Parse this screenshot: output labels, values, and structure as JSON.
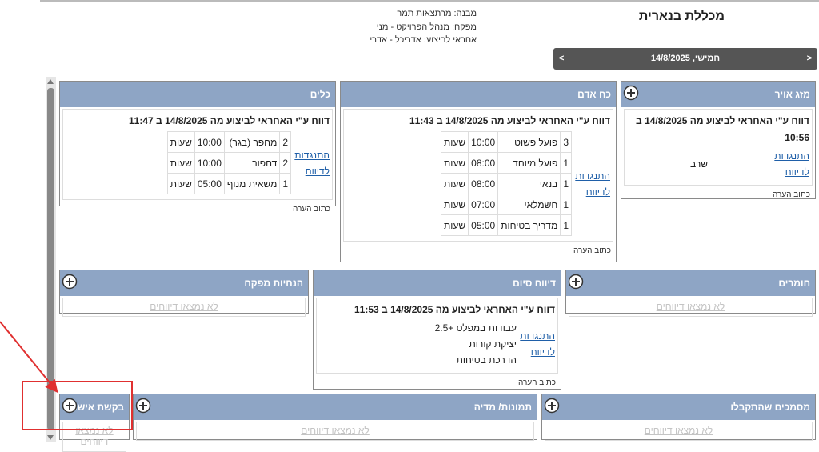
{
  "header": {
    "title": "מכללת בנארית",
    "info": [
      "מבנה: מרתצאות תמר",
      "מפקח: מנהל הפרויקט - מני",
      "אחראי לביצוע: אדריכל - אדרי"
    ]
  },
  "date_bar": {
    "prev": "<",
    "date": "חמישי, 14/8/2025",
    "next": ">"
  },
  "panels": [
    {
      "title": "מזג אויר",
      "can_add": true,
      "report": "דווח ע\"י האחראי לביצוע מה 14/8/2025 ב 10:56",
      "dispute": "התנגדות לדיווח",
      "items": [
        "שרב"
      ],
      "comment": "כתוב הערה"
    },
    {
      "title": "כח אדם",
      "can_add": false,
      "report": "דווח ע\"י האחראי לביצוע מה 14/8/2025 ב 11:43",
      "dispute": "התנגדות לדיווח",
      "rows": [
        [
          3,
          "פועל פשוט",
          "10:00",
          "שעות"
        ],
        [
          1,
          "פועל מיוחד",
          "08:00",
          "שעות"
        ],
        [
          1,
          "בנאי",
          "08:00",
          "שעות"
        ],
        [
          1,
          "חשמלאי",
          "07:00",
          "שעות"
        ],
        [
          1,
          "מדריך בטיחות",
          "05:00",
          "שעות"
        ]
      ],
      "comment": "כתוב הערה"
    },
    {
      "title": "כלים",
      "can_add": false,
      "report": "דווח ע\"י האחראי לביצוע מה 14/8/2025 ב 11:47",
      "dispute": "התנגדות לדיווח",
      "rows": [
        [
          2,
          "מחפר (בגר)",
          "10:00",
          "שעות"
        ],
        [
          2,
          "דחפור",
          "10:00",
          "שעות"
        ],
        [
          1,
          "משאית מנוף",
          "05:00",
          "שעות"
        ]
      ],
      "comment": "כתוב הערה"
    },
    {
      "title": "חומרים",
      "can_add": true,
      "empty": "לא נמצאו דיווחים"
    },
    {
      "title": "דיווח סיום",
      "can_add": false,
      "report": "דווח ע\"י האחראי לביצוע מה 14/8/2025 ב 11:53",
      "dispute": "התנגדות לדיווח",
      "items": [
        "עבודות במפלס +2.5",
        "יציקת קורות",
        "הדרכת בטיחות"
      ],
      "comment": "כתוב הערה"
    },
    {
      "title": "הנחיות מפקח",
      "can_add": true,
      "empty": "לא נמצאו דיווחים"
    },
    {
      "title": "מסמכים שהתקבלו",
      "can_add": true,
      "empty": "לא נמצאו דיווחים"
    },
    {
      "title": "תמונות/ מדיה",
      "can_add": true,
      "empty": "לא נמצאו דיווחים"
    },
    {
      "title": "בקשת אישור",
      "can_add": true,
      "empty": "לא נמצאו דיווחים"
    }
  ]
}
